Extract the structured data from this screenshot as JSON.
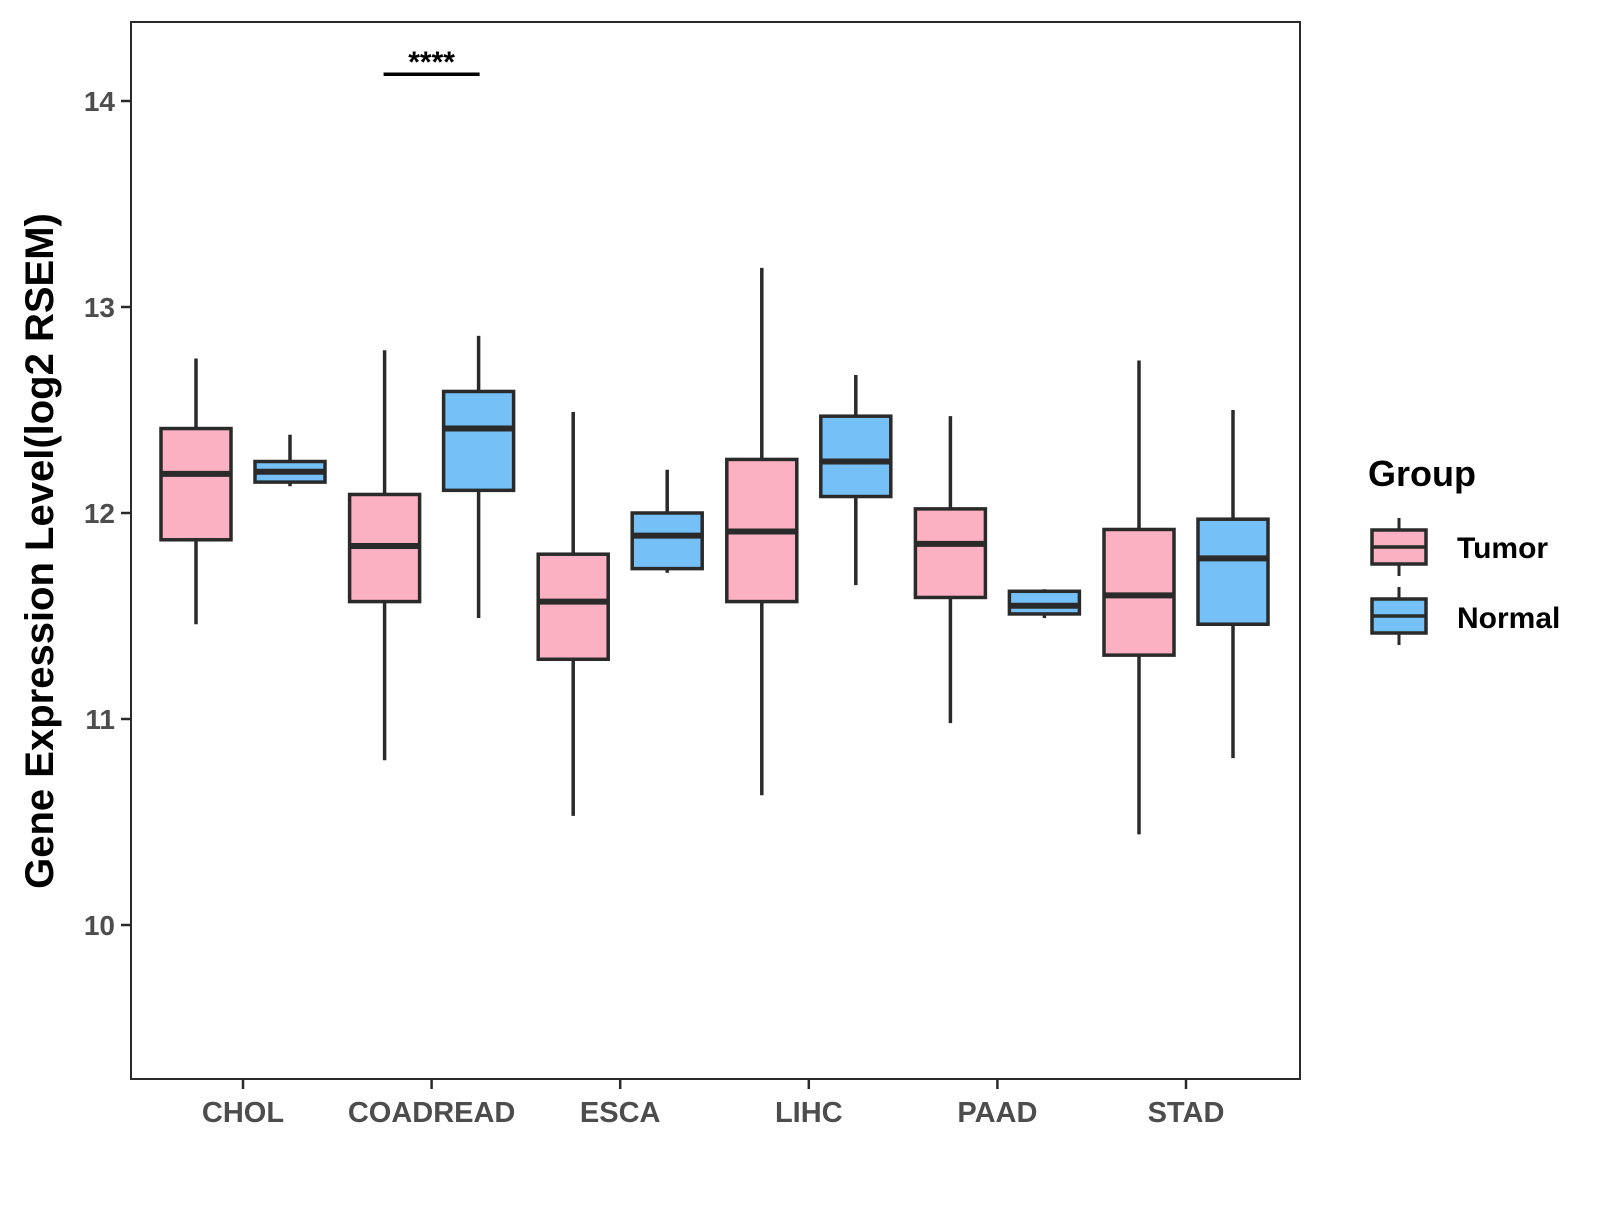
{
  "chart_data": {
    "type": "boxplot",
    "title": "",
    "xlabel": "",
    "ylabel": "Gene Expression Level(log2 RSEM)",
    "ylim": [
      9.25,
      14.38
    ],
    "yticks": [
      10,
      11,
      12,
      13,
      14
    ],
    "categories": [
      "CHOL",
      "COADREAD",
      "ESCA",
      "LIHC",
      "PAAD",
      "STAD"
    ],
    "colors": {
      "Tumor": "#fbb1c2",
      "Normal": "#74c0f7",
      "stroke": "#2a2a2a"
    },
    "legend": {
      "title": "Group",
      "position": "right",
      "entries": [
        "Tumor",
        "Normal"
      ]
    },
    "series": [
      {
        "name": "Tumor",
        "boxes": [
          {
            "whislo": 11.46,
            "q1": 11.87,
            "med": 12.19,
            "q3": 12.41,
            "whishi": 12.75
          },
          {
            "whislo": 10.8,
            "q1": 11.57,
            "med": 11.84,
            "q3": 12.09,
            "whishi": 12.79
          },
          {
            "whislo": 10.53,
            "q1": 11.29,
            "med": 11.57,
            "q3": 11.8,
            "whishi": 12.49
          },
          {
            "whislo": 10.63,
            "q1": 11.57,
            "med": 11.91,
            "q3": 12.26,
            "whishi": 13.19
          },
          {
            "whislo": 10.98,
            "q1": 11.59,
            "med": 11.85,
            "q3": 12.02,
            "whishi": 12.47
          },
          {
            "whislo": 10.44,
            "q1": 11.31,
            "med": 11.6,
            "q3": 11.92,
            "whishi": 12.74
          }
        ]
      },
      {
        "name": "Normal",
        "boxes": [
          {
            "whislo": 12.13,
            "q1": 12.15,
            "med": 12.2,
            "q3": 12.25,
            "whishi": 12.38
          },
          {
            "whislo": 11.49,
            "q1": 12.11,
            "med": 12.41,
            "q3": 12.59,
            "whishi": 12.86
          },
          {
            "whislo": 11.71,
            "q1": 11.73,
            "med": 11.89,
            "q3": 12.0,
            "whishi": 12.21
          },
          {
            "whislo": 11.65,
            "q1": 12.08,
            "med": 12.25,
            "q3": 12.47,
            "whishi": 12.67
          },
          {
            "whislo": 11.49,
            "q1": 11.51,
            "med": 11.55,
            "q3": 11.62,
            "whishi": 11.63
          },
          {
            "whislo": 10.81,
            "q1": 11.46,
            "med": 11.78,
            "q3": 11.97,
            "whishi": 12.5
          }
        ]
      }
    ],
    "annotations": [
      {
        "category": "COADREAD",
        "text": "****",
        "y": 14.13
      }
    ]
  }
}
